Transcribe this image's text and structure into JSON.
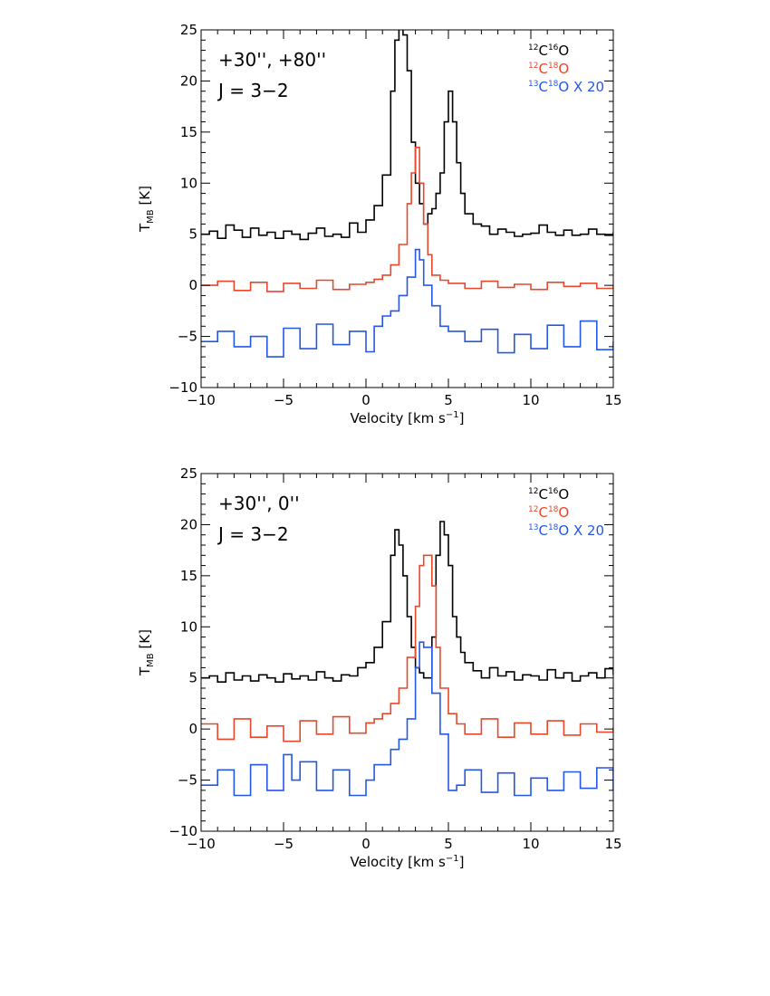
{
  "chart_data": [
    {
      "type": "line",
      "style": "step",
      "annotations": [
        "+30'', +80''",
        "J = 3−2"
      ],
      "xlabel": {
        "main": "Velocity [km s",
        "sup": "−1",
        "tail": "]"
      },
      "ylabel": {
        "main": "T",
        "sub": "MB",
        "tail": " [K]"
      },
      "xlim": [
        -10,
        15
      ],
      "ylim": [
        -10,
        25
      ],
      "xticks": [
        -10,
        -5,
        0,
        5,
        10,
        15
      ],
      "yticks": [
        -10,
        -5,
        0,
        5,
        10,
        15,
        20,
        25
      ],
      "xtick_labels": [
        "−10",
        "−5",
        "0",
        "5",
        "10",
        "15"
      ],
      "ytick_labels": [
        "−10",
        "−5",
        "0",
        "5",
        "10",
        "15",
        "20",
        "25"
      ],
      "grid": false,
      "legend_position": "top-right",
      "series": [
        {
          "name": "12C16O",
          "legend": {
            "pre": "12",
            "a": "C",
            "mid": "16",
            "b": "O",
            "tail": ""
          },
          "color": "#000000",
          "x": [
            -10,
            -9.5,
            -9,
            -8.5,
            -8,
            -7.5,
            -7,
            -6.5,
            -6,
            -5.5,
            -5,
            -4.5,
            -4,
            -3.5,
            -3,
            -2.5,
            -2,
            -1.5,
            -1,
            -0.5,
            0,
            0.5,
            1,
            1.5,
            1.75,
            2,
            2.25,
            2.5,
            2.75,
            3,
            3.25,
            3.5,
            3.75,
            4,
            4.25,
            4.5,
            4.75,
            5,
            5.25,
            5.5,
            5.75,
            6,
            6.5,
            7,
            7.5,
            8,
            8.5,
            9,
            9.5,
            10,
            10.5,
            11,
            11.5,
            12,
            12.5,
            13,
            13.5,
            14,
            14.5,
            15
          ],
          "y": [
            5.0,
            5.3,
            4.6,
            5.9,
            5.4,
            4.7,
            5.6,
            4.9,
            5.2,
            4.6,
            5.3,
            5.0,
            4.5,
            5.1,
            5.6,
            4.8,
            5.0,
            4.7,
            6.1,
            5.2,
            6.4,
            7.8,
            10.8,
            19.0,
            24.0,
            26.0,
            24.5,
            21.0,
            14.0,
            10.0,
            8.0,
            6.0,
            7.0,
            7.5,
            9.0,
            11.0,
            16.0,
            19.0,
            16.0,
            12.0,
            9.0,
            7.0,
            6.0,
            5.8,
            5.0,
            5.5,
            5.2,
            4.8,
            5.0,
            5.1,
            5.9,
            5.2,
            4.9,
            5.4,
            4.9,
            5.0,
            5.5,
            5.0,
            4.9,
            5.2
          ]
        },
        {
          "name": "12C18O",
          "legend": {
            "pre": "12",
            "a": "C",
            "mid": "18",
            "b": "O",
            "tail": ""
          },
          "color": "#e8472a",
          "x": [
            -10,
            -9,
            -8,
            -7,
            -6,
            -5,
            -4,
            -3,
            -2,
            -1,
            0,
            0.5,
            1,
            1.5,
            2,
            2.5,
            2.75,
            3,
            3.25,
            3.5,
            3.75,
            4,
            4.5,
            5,
            6,
            7,
            8,
            9,
            10,
            11,
            12,
            13,
            14,
            15
          ],
          "y": [
            0.0,
            0.4,
            -0.5,
            0.3,
            -0.6,
            0.2,
            -0.3,
            0.5,
            -0.4,
            0.1,
            0.3,
            0.6,
            1.0,
            2.0,
            4.0,
            8.0,
            11.0,
            13.5,
            10.0,
            6.0,
            3.0,
            1.0,
            0.5,
            0.2,
            -0.3,
            0.4,
            -0.2,
            0.1,
            -0.4,
            0.3,
            -0.1,
            0.2,
            -0.3,
            0.0
          ]
        },
        {
          "name": "13C18O x 20",
          "legend": {
            "pre": "13",
            "a": "C",
            "mid": "18",
            "b": "O",
            "tail": " X 20"
          },
          "color": "#2457e6",
          "x": [
            -10,
            -9,
            -8,
            -7,
            -6,
            -5,
            -4,
            -3,
            -2,
            -1,
            0,
            0.5,
            1,
            1.5,
            2,
            2.5,
            3,
            3.25,
            3.5,
            4,
            4.5,
            5,
            6,
            7,
            8,
            9,
            10,
            11,
            12,
            13,
            14,
            15
          ],
          "y": [
            -5.5,
            -4.5,
            -6.0,
            -5.0,
            -7.0,
            -4.2,
            -6.2,
            -3.8,
            -5.8,
            -4.5,
            -6.5,
            -4.0,
            -3.0,
            -2.5,
            -1.0,
            0.8,
            3.5,
            2.5,
            0.0,
            -2.0,
            -4.0,
            -4.5,
            -5.5,
            -4.3,
            -6.6,
            -4.8,
            -6.2,
            -3.9,
            -6.0,
            -3.5,
            -6.3,
            -5.5
          ]
        }
      ]
    },
    {
      "type": "line",
      "style": "step",
      "annotations": [
        "+30'', 0''",
        "J = 3−2"
      ],
      "xlabel": {
        "main": "Velocity [km s",
        "sup": "−1",
        "tail": "]"
      },
      "ylabel": {
        "main": "T",
        "sub": "MB",
        "tail": " [K]"
      },
      "xlim": [
        -10,
        15
      ],
      "ylim": [
        -10,
        25
      ],
      "xticks": [
        -10,
        -5,
        0,
        5,
        10,
        15
      ],
      "yticks": [
        -10,
        -5,
        0,
        5,
        10,
        15,
        20,
        25
      ],
      "xtick_labels": [
        "−10",
        "−5",
        "0",
        "5",
        "10",
        "15"
      ],
      "ytick_labels": [
        "−10",
        "−5",
        "0",
        "5",
        "10",
        "15",
        "20",
        "25"
      ],
      "grid": false,
      "legend_position": "top-right",
      "series": [
        {
          "name": "12C16O",
          "legend": {
            "pre": "12",
            "a": "C",
            "mid": "16",
            "b": "O",
            "tail": ""
          },
          "color": "#000000",
          "x": [
            -10,
            -9.5,
            -9,
            -8.5,
            -8,
            -7.5,
            -7,
            -6.5,
            -6,
            -5.5,
            -5,
            -4.5,
            -4,
            -3.5,
            -3,
            -2.5,
            -2,
            -1.5,
            -1,
            -0.5,
            0,
            0.5,
            1,
            1.5,
            1.75,
            2,
            2.25,
            2.5,
            2.75,
            3,
            3.25,
            3.5,
            3.75,
            4,
            4.25,
            4.5,
            4.75,
            5,
            5.25,
            5.5,
            5.75,
            6,
            6.5,
            7,
            7.5,
            8,
            8.5,
            9,
            9.5,
            10,
            10.5,
            11,
            11.5,
            12,
            12.5,
            13,
            13.5,
            14,
            14.5,
            15
          ],
          "y": [
            5.0,
            5.2,
            4.6,
            5.5,
            4.8,
            5.2,
            4.7,
            5.3,
            5.0,
            4.6,
            5.4,
            4.9,
            5.2,
            4.8,
            5.6,
            5.0,
            4.7,
            5.3,
            5.2,
            6.0,
            6.5,
            8.0,
            10.5,
            17.0,
            19.5,
            18.0,
            15.0,
            11.0,
            8.0,
            6.0,
            5.5,
            5.0,
            5.0,
            9.0,
            17.0,
            20.3,
            19.0,
            16.0,
            11.0,
            9.0,
            7.5,
            6.5,
            5.7,
            5.0,
            6.0,
            5.2,
            5.6,
            4.8,
            5.3,
            5.2,
            4.8,
            5.8,
            5.0,
            5.5,
            4.7,
            5.2,
            5.5,
            5.0,
            5.9,
            5.3
          ]
        },
        {
          "name": "12C18O",
          "legend": {
            "pre": "12",
            "a": "C",
            "mid": "18",
            "b": "O",
            "tail": ""
          },
          "color": "#e8472a",
          "x": [
            -10,
            -9,
            -8,
            -7,
            -6,
            -5,
            -4,
            -3,
            -2,
            -1,
            0,
            0.5,
            1,
            1.5,
            2,
            2.5,
            3,
            3.25,
            3.5,
            3.75,
            4,
            4.25,
            4.5,
            5,
            5.5,
            6,
            7,
            8,
            9,
            10,
            11,
            12,
            13,
            14,
            15
          ],
          "y": [
            0.5,
            -1.0,
            1.0,
            -0.8,
            0.3,
            -1.2,
            0.8,
            -0.5,
            1.2,
            -0.4,
            0.6,
            1.0,
            1.5,
            2.5,
            4.0,
            7.0,
            12.0,
            16.0,
            17.0,
            17.0,
            14.0,
            8.0,
            4.0,
            1.5,
            0.5,
            -0.5,
            1.0,
            -0.8,
            0.6,
            -0.5,
            0.8,
            -0.6,
            0.5,
            -0.3,
            0.2
          ]
        },
        {
          "name": "13C18O x 20",
          "legend": {
            "pre": "13",
            "a": "C",
            "mid": "18",
            "b": "O",
            "tail": " X 20"
          },
          "color": "#2457e6",
          "x": [
            -10,
            -9,
            -8,
            -7,
            -6,
            -5,
            -4.5,
            -4,
            -3,
            -2,
            -1,
            0,
            0.5,
            1,
            1.5,
            2,
            2.5,
            3,
            3.25,
            3.5,
            4,
            4.5,
            5,
            5.5,
            6,
            7,
            8,
            9,
            10,
            11,
            12,
            13,
            14,
            15
          ],
          "y": [
            -5.5,
            -4.0,
            -6.5,
            -3.5,
            -6.0,
            -2.5,
            -5.0,
            -3.2,
            -6.0,
            -4.0,
            -6.5,
            -5.0,
            -3.5,
            -3.5,
            -2.0,
            -1.0,
            1.0,
            6.0,
            8.5,
            8.0,
            3.5,
            -0.5,
            -6.0,
            -5.5,
            -4.0,
            -6.2,
            -4.3,
            -6.5,
            -4.8,
            -6.0,
            -4.2,
            -5.8,
            -3.8,
            -6.0
          ]
        }
      ]
    }
  ]
}
